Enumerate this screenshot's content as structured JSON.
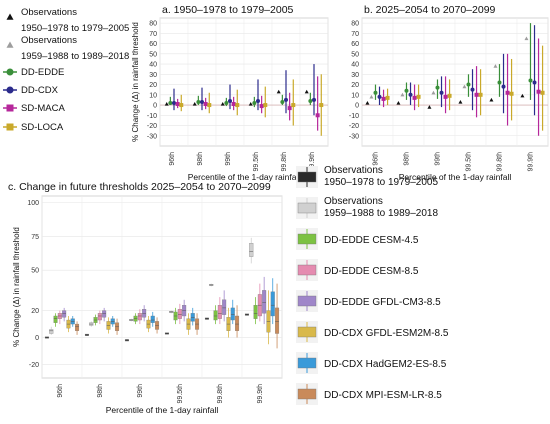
{
  "legend_top": {
    "entries": [
      {
        "label_lines": [
          "Observations",
          "1950–1978 to 1979–2005"
        ],
        "marker": "triangle",
        "color": "#111111"
      },
      {
        "label_lines": [
          "Observations",
          "1959–1988 to 1989–2018"
        ],
        "marker": "triangle",
        "color": "#9e9e9e"
      },
      {
        "label_lines": [
          "DD-EDDE"
        ],
        "marker": "circle",
        "color": "#3a8f3a"
      },
      {
        "label_lines": [
          "DD-CDX"
        ],
        "marker": "circle",
        "color": "#2b2b8c"
      },
      {
        "label_lines": [
          "SD-MACA"
        ],
        "marker": "square",
        "color": "#b6279b"
      },
      {
        "label_lines": [
          "SD-LOCA"
        ],
        "marker": "square",
        "color": "#c9a92a"
      }
    ]
  },
  "legend_bottom": {
    "entries": [
      {
        "label_lines": [
          "Observations",
          "1950–1978 to 1979–2005"
        ],
        "color": "#2b2b2b"
      },
      {
        "label_lines": [
          "Observations",
          "1959–1988 to 1989–2018"
        ],
        "color": "#d0d0d0"
      },
      {
        "label_lines": [
          "DD-EDDE CESM-4.5"
        ],
        "color": "#7cc242"
      },
      {
        "label_lines": [
          "DD-EDDE CESM-8.5"
        ],
        "color": "#e58bb0"
      },
      {
        "label_lines": [
          "DD-EDDE GFDL-CM3-8.5"
        ],
        "color": "#9f86c9"
      },
      {
        "label_lines": [
          "DD-CDX GFDL-ESM2M-8.5"
        ],
        "color": "#d9b94a"
      },
      {
        "label_lines": [
          "DD-CDX HadGEM2-ES-8.5"
        ],
        "color": "#3a9ad9"
      },
      {
        "label_lines": [
          "DD-CDX MPI-ESM-LR-8.5"
        ],
        "color": "#c98a5a"
      }
    ]
  },
  "chart_data": [
    {
      "type": "scatter",
      "panel": "a",
      "title": "a.  1950–1978 to 1979–2005",
      "xlabel": "Percentile of the 1-day rainfall",
      "ylabel": "% Change (Δ) in rainfall threshold",
      "ylim": [
        -40,
        85
      ],
      "yticks": [
        -30,
        -20,
        -10,
        0,
        10,
        20,
        30,
        40,
        50,
        60,
        70,
        80
      ],
      "categories": [
        "96th",
        "98th",
        "99th",
        "99.5th",
        "99.8th",
        "99.9th"
      ],
      "grid": true,
      "series": [
        {
          "name": "Observations 1950–1978 to 1979–2005",
          "color": "#111111",
          "marker": "triangle",
          "values": [
            1,
            1,
            1,
            1,
            13,
            13
          ]
        },
        {
          "name": "DD-EDDE",
          "color": "#3a8f3a",
          "marker": "circle",
          "values": [
            2,
            3,
            2,
            2,
            3,
            4
          ],
          "ranges": [
            [
              0,
              8
            ],
            [
              0,
              9
            ],
            [
              -1,
              7
            ],
            [
              -2,
              8
            ],
            [
              0,
              10
            ],
            [
              0,
              12
            ]
          ]
        },
        {
          "name": "DD-CDX",
          "color": "#2b2b8c",
          "marker": "circle",
          "values": [
            2,
            3,
            4,
            4,
            5,
            5
          ],
          "ranges": [
            [
              -5,
              16
            ],
            [
              -5,
              17
            ],
            [
              -4,
              20
            ],
            [
              -5,
              25
            ],
            [
              -8,
              34
            ],
            [
              -10,
              40
            ]
          ]
        },
        {
          "name": "SD-MACA",
          "color": "#b6279b",
          "marker": "square",
          "values": [
            1,
            1,
            1,
            -1,
            -3,
            -10
          ],
          "ranges": [
            [
              -3,
              6
            ],
            [
              -4,
              7
            ],
            [
              -5,
              8
            ],
            [
              -8,
              9
            ],
            [
              -15,
              12
            ],
            [
              -25,
              28
            ]
          ]
        },
        {
          "name": "SD-LOCA",
          "color": "#c9a92a",
          "marker": "square",
          "values": [
            0,
            0,
            0,
            0,
            0,
            0
          ],
          "ranges": [
            [
              -6,
              10
            ],
            [
              -8,
              12
            ],
            [
              -10,
              15
            ],
            [
              -12,
              18
            ],
            [
              -20,
              25
            ],
            [
              -30,
              30
            ]
          ]
        }
      ]
    },
    {
      "type": "scatter",
      "panel": "b",
      "title": "b.  2025–2054 to 2070–2099",
      "xlabel": "Percentile of the 1-day rainfall",
      "ylabel": "",
      "ylim": [
        -40,
        85
      ],
      "yticks": [
        -30,
        -20,
        -10,
        0,
        10,
        20,
        30,
        40,
        50,
        60,
        70,
        80
      ],
      "categories": [
        "96th",
        "98th",
        "99th",
        "99.5th",
        "99.8th",
        "99.9th"
      ],
      "grid": true,
      "series": [
        {
          "name": "Observations 1950–1978 to 1979–2005",
          "color": "#111111",
          "marker": "triangle",
          "values": [
            2,
            2,
            -2,
            3,
            5,
            9
          ]
        },
        {
          "name": "Observations 1959–1988 to 1989–2018",
          "color": "#9e9e9e",
          "marker": "triangle",
          "values": [
            8,
            10,
            12,
            18,
            38,
            65
          ]
        },
        {
          "name": "DD-EDDE",
          "color": "#3a8f3a",
          "marker": "circle",
          "values": [
            12,
            14,
            17,
            20,
            22,
            24
          ],
          "ranges": [
            [
              5,
              20
            ],
            [
              5,
              22
            ],
            [
              6,
              25
            ],
            [
              8,
              30
            ],
            [
              8,
              40
            ],
            [
              5,
              80
            ]
          ]
        },
        {
          "name": "DD-CDX",
          "color": "#2b2b8c",
          "marker": "circle",
          "values": [
            8,
            10,
            12,
            15,
            18,
            22
          ],
          "ranges": [
            [
              0,
              18
            ],
            [
              0,
              22
            ],
            [
              -2,
              28
            ],
            [
              -5,
              35
            ],
            [
              -8,
              50
            ],
            [
              -10,
              78
            ]
          ]
        },
        {
          "name": "SD-MACA",
          "color": "#b6279b",
          "marker": "square",
          "values": [
            6,
            7,
            8,
            10,
            12,
            13
          ],
          "ranges": [
            [
              -2,
              15
            ],
            [
              -5,
              20
            ],
            [
              -8,
              28
            ],
            [
              -12,
              38
            ],
            [
              -20,
              50
            ],
            [
              -30,
              65
            ]
          ]
        },
        {
          "name": "SD-LOCA",
          "color": "#c9a92a",
          "marker": "square",
          "values": [
            7,
            8,
            9,
            10,
            11,
            12
          ],
          "ranges": [
            [
              0,
              16
            ],
            [
              -2,
              20
            ],
            [
              -5,
              25
            ],
            [
              -10,
              35
            ],
            [
              -15,
              45
            ],
            [
              -25,
              58
            ]
          ]
        }
      ]
    },
    {
      "type": "box",
      "panel": "c",
      "title": "c.   Change in future thresholds 2025–2054 to 2070–2099",
      "xlabel": "Percentile of the 1-day rainfall",
      "ylabel": "% Change (Δ) in rainfall threshold",
      "ylim": [
        -30,
        105
      ],
      "yticks": [
        -20,
        0,
        20,
        50,
        75,
        100
      ],
      "categories": [
        "96th",
        "98th",
        "99th",
        "99.5th",
        "99.8th",
        "99.9th"
      ],
      "grid": true,
      "series": [
        {
          "name": "Observations 1950–1978 to 1979–2005",
          "color": "#2b2b2b",
          "boxes": [
            [
              0,
              0,
              0,
              0,
              0
            ],
            [
              2,
              2,
              2,
              2,
              2
            ],
            [
              -2,
              -2,
              -2,
              -2,
              -2
            ],
            [
              3,
              3,
              3,
              3,
              3
            ],
            [
              14,
              14,
              14,
              14,
              14
            ],
            [
              17,
              17,
              17,
              17,
              17
            ]
          ]
        },
        {
          "name": "Observations 1959–1988 to 1989–2018",
          "color": "#d0d0d0",
          "boxes": [
            [
              2,
              3,
              5,
              6,
              8
            ],
            [
              8,
              9,
              10,
              11,
              12
            ],
            [
              12,
              12,
              13,
              13,
              14
            ],
            [
              18,
              18,
              19,
              19,
              20
            ],
            [
              38,
              38,
              39,
              39,
              40
            ],
            [
              55,
              60,
              64,
              70,
              74
            ]
          ]
        },
        {
          "name": "DD-EDDE CESM-4.5",
          "color": "#7cc242",
          "boxes": [
            [
              8,
              11,
              14,
              16,
              18
            ],
            [
              9,
              11,
              13,
              15,
              17
            ],
            [
              10,
              12,
              14,
              16,
              18
            ],
            [
              10,
              13,
              16,
              19,
              22
            ],
            [
              10,
              13,
              16,
              20,
              24
            ],
            [
              10,
              14,
              18,
              24,
              30
            ]
          ]
        },
        {
          "name": "DD-EDDE CESM-8.5",
          "color": "#e58bb0",
          "boxes": [
            [
              10,
              14,
              16,
              18,
              20
            ],
            [
              10,
              13,
              16,
              18,
              20
            ],
            [
              10,
              13,
              16,
              18,
              21
            ],
            [
              10,
              14,
              17,
              21,
              25
            ],
            [
              10,
              14,
              18,
              24,
              30
            ],
            [
              12,
              16,
              24,
              32,
              40
            ]
          ]
        },
        {
          "name": "DD-EDDE GFDL-CM3-8.5",
          "color": "#9f86c9",
          "boxes": [
            [
              12,
              15,
              18,
              20,
              22
            ],
            [
              12,
              15,
              18,
              20,
              22
            ],
            [
              12,
              15,
              18,
              21,
              24
            ],
            [
              12,
              16,
              20,
              24,
              28
            ],
            [
              12,
              17,
              22,
              28,
              35
            ],
            [
              10,
              18,
              26,
              35,
              45
            ]
          ]
        },
        {
          "name": "DD-CDX GFDL-ESM2M-8.5",
          "color": "#d9b94a",
          "boxes": [
            [
              4,
              7,
              10,
              13,
              16
            ],
            [
              3,
              6,
              9,
              12,
              15
            ],
            [
              4,
              7,
              10,
              13,
              16
            ],
            [
              2,
              6,
              10,
              14,
              18
            ],
            [
              0,
              5,
              10,
              15,
              22
            ],
            [
              -5,
              4,
              12,
              20,
              35
            ]
          ]
        },
        {
          "name": "DD-CDX HadGEM2-ES-8.5",
          "color": "#3a9ad9",
          "boxes": [
            [
              8,
              10,
              12,
              14,
              16
            ],
            [
              8,
              10,
              12,
              14,
              16
            ],
            [
              8,
              11,
              13,
              16,
              19
            ],
            [
              9,
              12,
              15,
              18,
              22
            ],
            [
              10,
              13,
              17,
              22,
              28
            ],
            [
              10,
              16,
              24,
              34,
              44
            ]
          ]
        },
        {
          "name": "DD-CDX MPI-ESM-LR-8.5",
          "color": "#c98a5a",
          "boxes": [
            [
              2,
              5,
              8,
              10,
              12
            ],
            [
              2,
              5,
              8,
              11,
              14
            ],
            [
              3,
              6,
              9,
              12,
              15
            ],
            [
              2,
              6,
              10,
              14,
              18
            ],
            [
              0,
              5,
              10,
              16,
              24
            ],
            [
              -8,
              3,
              12,
              22,
              40
            ]
          ]
        }
      ]
    }
  ]
}
